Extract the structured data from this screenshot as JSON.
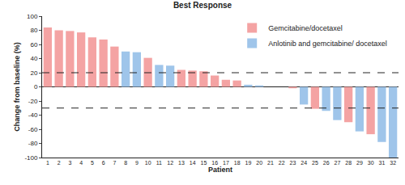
{
  "chart_data": {
    "type": "bar",
    "title": "Best Response",
    "x_label": "Patient",
    "y_label": "Change from baseline (%)",
    "categories": [
      "1",
      "2",
      "3",
      "4",
      "5",
      "6",
      "7",
      "8",
      "9",
      "10",
      "11",
      "12",
      "13",
      "14",
      "15",
      "16",
      "17",
      "18",
      "19",
      "20",
      "21",
      "22",
      "23",
      "24",
      "25",
      "26",
      "27",
      "28",
      "29",
      "30",
      "31",
      "32"
    ],
    "series": [
      {
        "name": "Gemcitabine/docetaxel",
        "color": "#f4a3a3",
        "values": [
          84,
          80,
          79,
          77,
          70,
          67,
          57,
          null,
          null,
          41,
          null,
          null,
          24,
          23,
          22,
          16,
          10,
          9,
          null,
          null,
          0,
          null,
          -2,
          null,
          -31,
          null,
          null,
          -50,
          null,
          -67,
          null,
          null
        ]
      },
      {
        "name": "Anlotinib and gemcitabine/ docetaxel",
        "color": "#9fc5ea",
        "values": [
          null,
          null,
          null,
          null,
          null,
          null,
          null,
          50,
          49,
          null,
          31,
          30,
          null,
          null,
          null,
          null,
          null,
          null,
          3,
          2,
          null,
          0,
          null,
          -25,
          null,
          -34,
          -47,
          null,
          -63,
          null,
          -78,
          -100
        ]
      }
    ],
    "reference_lines": [
      20,
      -30
    ],
    "ylim": [
      -100,
      100
    ],
    "yticks": [
      -100,
      -80,
      -60,
      -40,
      -20,
      0,
      20,
      40,
      60,
      80,
      100
    ],
    "legend": "upper right",
    "grid": false
  }
}
